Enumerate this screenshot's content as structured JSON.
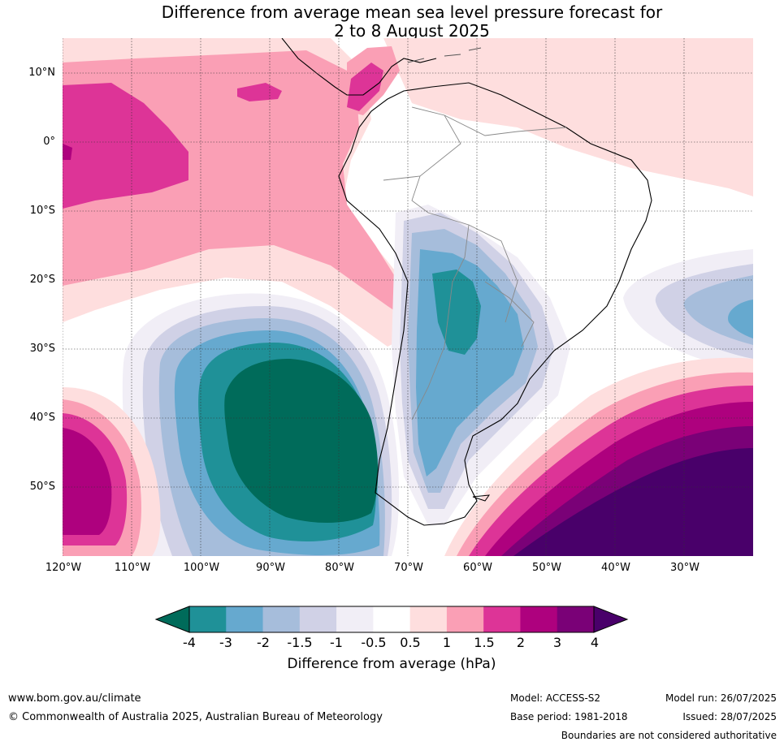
{
  "title_line1": "Difference from average mean sea level pressure forecast for",
  "title_line2": "2 to 8 August 2025",
  "lat_labels": [
    "10°N",
    "0°",
    "10°S",
    "20°S",
    "30°S",
    "40°S",
    "50°S"
  ],
  "lon_labels": [
    "120°W",
    "110°W",
    "100°W",
    "90°W",
    "80°W",
    "70°W",
    "60°W",
    "50°W",
    "40°W",
    "30°W"
  ],
  "colorbar": {
    "title": "Difference from average (hPa)",
    "ticks": [
      "-4",
      "-3",
      "-2",
      "-1.5",
      "-1",
      "-0.5",
      "0.5",
      "1",
      "1.5",
      "2",
      "3",
      "4"
    ],
    "colors": [
      "#006b5a",
      "#1f9198",
      "#66a9cf",
      "#a6bddb",
      "#d0d1e6",
      "#f1eef6",
      "#ffffff",
      "#fedede",
      "#fa9fb5",
      "#dd3497",
      "#ae017e",
      "#7a0177",
      "#49006a"
    ]
  },
  "footer": {
    "website": "www.bom.gov.au/climate",
    "copyright": "© Commonwealth of Australia 2025, Australian Bureau of Meteorology",
    "model": "Model: ACCESS-S2",
    "base_period": "Base period: 1981-2018",
    "model_run": "Model run: 26/07/2025",
    "issued": "Issued: 28/07/2025",
    "disclaimer": "Boundaries are not considered authoritative"
  }
}
